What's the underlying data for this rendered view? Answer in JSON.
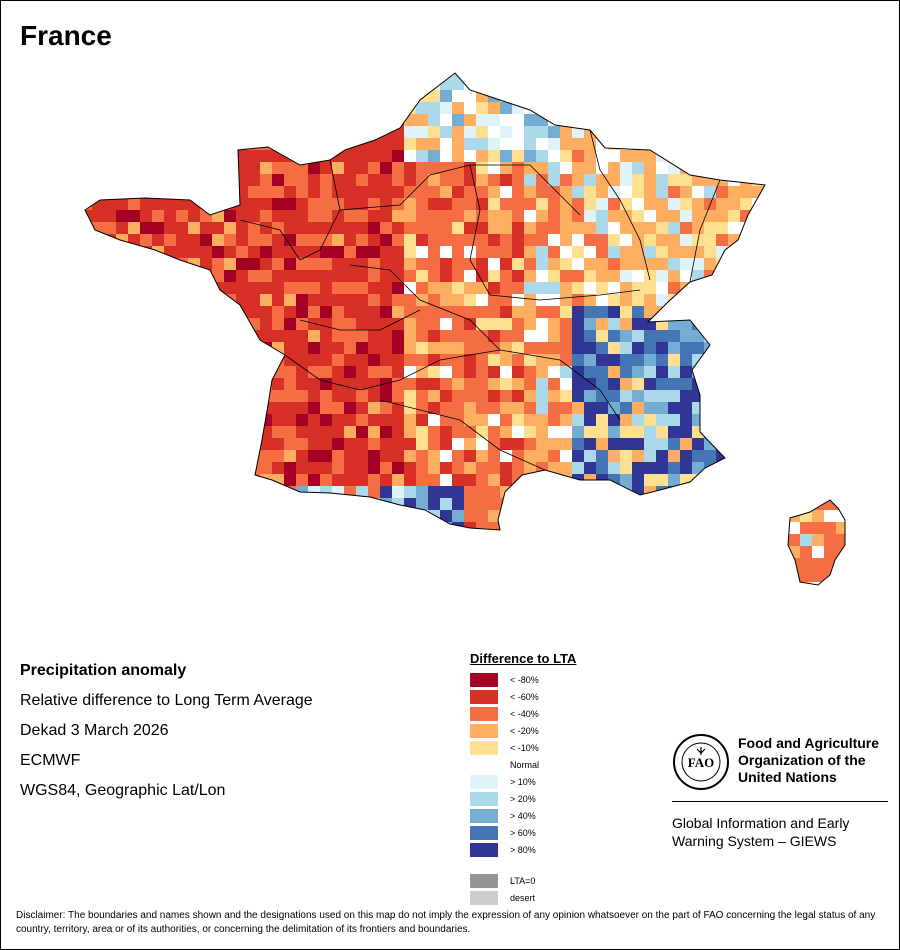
{
  "title": "France",
  "info": {
    "heading": "Precipitation anomaly",
    "line1": "Relative difference to Long Term Average",
    "line2": "Dekad 3 March 2026",
    "line3": "ECMWF",
    "line4": "WGS84, Geographic Lat/Lon"
  },
  "legend": {
    "title": "Difference to LTA",
    "items": [
      {
        "label": "< -80%",
        "color": "#a50026"
      },
      {
        "label": "< -60%",
        "color": "#d73027"
      },
      {
        "label": "< -40%",
        "color": "#f46d43"
      },
      {
        "label": "< -20%",
        "color": "#fdae61"
      },
      {
        "label": "< -10%",
        "color": "#fee090"
      },
      {
        "label": "Normal",
        "color": "#ffffff"
      },
      {
        "label": "> 10%",
        "color": "#e0f3f8"
      },
      {
        "label": "> 20%",
        "color": "#abd9e9"
      },
      {
        "label": "> 40%",
        "color": "#74add1"
      },
      {
        "label": "> 60%",
        "color": "#4575b4"
      },
      {
        "label": "> 80%",
        "color": "#313695"
      }
    ],
    "lta0": {
      "label": "LTA=0",
      "color": "#969696"
    },
    "desert": {
      "label": "desert",
      "color": "#cccccc"
    }
  },
  "org": {
    "logo_text": "FAO",
    "name_line1": "Food and Agriculture",
    "name_line2": "Organization of the",
    "name_line3": "United Nations",
    "giews_line1": "Global Information and Early",
    "giews_line2": "Warning System – GIEWS"
  },
  "disclaimer": "Disclaimer: The boundaries and names shown and the designations used on this map do not imply the expression of any opinion whatsoever on the part of FAO concerning the legal status of any country, territory, area or of its authorities, or concerning the delimitation of its frontiers and boundaries."
}
